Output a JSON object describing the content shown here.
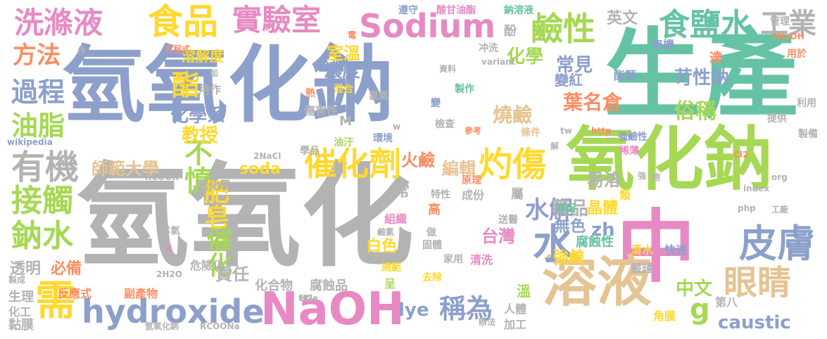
{
  "words": [
    {
      "text": "氫氧化鈉",
      "color": "#8da0cb"
    },
    {
      "text": "生產",
      "color": "#66c2a5"
    },
    {
      "text": "氫氧化",
      "color": "#b3b3b3"
    },
    {
      "text": "氧化鈉",
      "color": "#a6d854"
    },
    {
      "text": "中",
      "color": "#e78ac3"
    },
    {
      "text": "溶液",
      "color": "#e5c494"
    },
    {
      "text": "NaOH",
      "color": "#e78ac3"
    },
    {
      "text": "hydroxide",
      "color": "#8da0cb"
    },
    {
      "text": "食品",
      "color": "#ffd92f"
    },
    {
      "text": "洗滌液",
      "color": "#e78ac3"
    },
    {
      "text": "實驗室",
      "color": "#e78ac3"
    },
    {
      "text": "Sodium",
      "color": "#e78ac3"
    },
    {
      "text": "鹼性",
      "color": "#a6d854"
    },
    {
      "text": "食鹽水",
      "color": "#66c2a5"
    },
    {
      "text": "工業",
      "color": "#b3b3b3"
    },
    {
      "text": "方法",
      "color": "#fc8d62"
    },
    {
      "text": "過程",
      "color": "#8da0cb"
    },
    {
      "text": "油脂",
      "color": "#a6d854"
    },
    {
      "text": "有機",
      "color": "#b3b3b3"
    },
    {
      "text": "接觸",
      "color": "#a6d854"
    },
    {
      "text": "鈉水",
      "color": "#a6d854"
    },
    {
      "text": "需",
      "color": "#ffd92f"
    },
    {
      "text": "不慎",
      "color": "#a6d854"
    },
    {
      "text": "催化劑",
      "color": "#ffd92f"
    },
    {
      "text": "灼傷",
      "color": "#ffd92f"
    },
    {
      "text": "肥皂",
      "color": "#ffd92f"
    },
    {
      "text": "催化",
      "color": "#a6d854"
    },
    {
      "text": "水解",
      "color": "#8da0cb"
    },
    {
      "text": "水",
      "color": "#8da0cb"
    },
    {
      "text": "皮膚",
      "color": "#8da0cb"
    },
    {
      "text": "眼睛",
      "color": "#e5c494"
    },
    {
      "text": "稱為",
      "color": "#8da0cb"
    },
    {
      "text": "酯",
      "color": "#ffd92f"
    },
    {
      "text": "化學系",
      "color": "#8da0cb"
    },
    {
      "text": "教授",
      "color": "#ffd92f"
    },
    {
      "text": "師範大學",
      "color": "#e5c494"
    },
    {
      "text": "燒鹼",
      "color": "#e5c494"
    },
    {
      "text": "葉名倉",
      "color": "#fc8d62"
    },
    {
      "text": "俗稱",
      "color": "#a6d854"
    },
    {
      "text": "苛性鈉",
      "color": "#8da0cb"
    },
    {
      "text": "常見",
      "color": "#8da0cb"
    },
    {
      "text": "英文",
      "color": "#b3b3b3"
    },
    {
      "text": "化學",
      "color": "#a6d854"
    },
    {
      "text": "濃度",
      "color": "#8da0cb"
    },
    {
      "text": "室溫",
      "color": "#ffd92f"
    },
    {
      "text": "溶解度",
      "color": "#ffd92f"
    },
    {
      "text": "soda",
      "color": "#ffd92f"
    },
    {
      "text": "火鹼",
      "color": "#fc8d62"
    },
    {
      "text": "編輯",
      "color": "#e5c494"
    },
    {
      "text": "易溶",
      "color": "#b3b3b3"
    },
    {
      "text": "晶體",
      "color": "#ffd92f"
    },
    {
      "text": "藥品",
      "color": "#b3b3b3"
    },
    {
      "text": "無色",
      "color": "#8da0cb"
    },
    {
      "text": "zh",
      "color": "#8da0cb"
    },
    {
      "text": "台灣",
      "color": "#e78ac3"
    },
    {
      "text": "白色",
      "color": "#ffd92f"
    },
    {
      "text": "強鹼",
      "color": "#ffd92f"
    },
    {
      "text": "中文",
      "color": "#a6d854"
    },
    {
      "text": "g",
      "color": "#a6d854"
    },
    {
      "text": "caustic",
      "color": "#8da0cb"
    },
    {
      "text": "lye",
      "color": "#8da0cb"
    },
    {
      "text": "責任",
      "color": "#b3b3b3"
    },
    {
      "text": "透明",
      "color": "#b3b3b3"
    },
    {
      "text": "必備",
      "color": "#fc8d62"
    },
    {
      "text": "化合物",
      "color": "#b3b3b3"
    },
    {
      "text": "腐蝕品",
      "color": "#b3b3b3"
    },
    {
      "text": "常",
      "color": "#b3b3b3"
    },
    {
      "text": "危險化",
      "color": "#b3b3b3"
    },
    {
      "text": "起化學",
      "color": "#b3b3b3"
    },
    {
      "text": "反應式",
      "color": "#fc8d62"
    },
    {
      "text": "副產物",
      "color": "#fc8d62"
    },
    {
      "text": "生理",
      "color": "#b3b3b3"
    },
    {
      "text": "化工",
      "color": "#b3b3b3"
    },
    {
      "text": "黏膜",
      "color": "#b3b3b3"
    },
    {
      "text": "第八",
      "color": "#b3b3b3"
    },
    {
      "text": "角膜",
      "color": "#ffd92f"
    },
    {
      "text": "加工",
      "color": "#b3b3b3"
    },
    {
      "text": "人體",
      "color": "#b3b3b3"
    },
    {
      "text": "溫",
      "color": "#a6d854"
    },
    {
      "text": "腐蝕性",
      "color": "#66c2a5"
    },
    {
      "text": "清水",
      "color": "#ffd92f"
    },
    {
      "text": "快速",
      "color": "#8da0cb"
    },
    {
      "text": "嚴謹",
      "color": "#b3b3b3"
    },
    {
      "text": "清洗",
      "color": "#e78ac3"
    },
    {
      "text": "去除",
      "color": "#ffd92f"
    },
    {
      "text": "規範",
      "color": "#ffd92f"
    },
    {
      "text": "呈",
      "color": "#a6d854"
    },
    {
      "text": "高",
      "color": "#fc8d62"
    },
    {
      "text": "成份",
      "color": "#b3b3b3"
    },
    {
      "text": "特性",
      "color": "#b3b3b3"
    },
    {
      "text": "組織",
      "color": "#e78ac3"
    },
    {
      "text": "固體",
      "color": "#b3b3b3"
    },
    {
      "text": "做",
      "color": "#b3b3b3"
    },
    {
      "text": "家用",
      "color": "#b3b3b3"
    },
    {
      "text": "原理",
      "color": "#fc8d62"
    },
    {
      "text": "送醫",
      "color": "#b3b3b3"
    },
    {
      "text": "原因",
      "color": "#66c2a5"
    },
    {
      "text": "屬",
      "color": "#b3b3b3"
    },
    {
      "text": "類",
      "color": "#ffd92f"
    },
    {
      "text": "稀薄",
      "color": "#e78ac3"
    },
    {
      "text": "強鹼性",
      "color": "#8da0cb"
    },
    {
      "text": "三",
      "color": "#b3b3b3"
    },
    {
      "text": "製備",
      "color": "#b3b3b3"
    },
    {
      "text": "利用",
      "color": "#b3b3b3"
    },
    {
      "text": "提供",
      "color": "#b3b3b3"
    },
    {
      "text": "用於",
      "color": "#fc8d62"
    },
    {
      "text": "達",
      "color": "#fc8d62"
    },
    {
      "text": "無機",
      "color": "#8da0cb"
    },
    {
      "text": "變紅",
      "color": "#8da0cb"
    },
    {
      "text": "酯類",
      "color": "#8da0cb"
    },
    {
      "text": "管理",
      "color": "#b3b3b3"
    },
    {
      "text": "2NaOH",
      "color": "#fc8d62"
    },
    {
      "text": "酸甘油酯",
      "color": "#e78ac3"
    },
    {
      "text": "鈉溶液",
      "color": "#66c2a5"
    },
    {
      "text": "遵守",
      "color": "#8da0cb"
    },
    {
      "text": "酚",
      "color": "#b3b3b3"
    },
    {
      "text": "冲洗",
      "color": "#b3b3b3"
    },
    {
      "text": "製作",
      "color": "#66c2a5"
    },
    {
      "text": "檢查",
      "color": "#b3b3b3"
    },
    {
      "text": "條件",
      "color": "#e5c494"
    },
    {
      "text": "參考",
      "color": "#fc8d62"
    },
    {
      "text": "環境",
      "color": "#8da0cb"
    },
    {
      "text": "傷害性",
      "color": "#b3b3b3"
    },
    {
      "text": "氯氣",
      "color": "#b3b3b3"
    },
    {
      "text": "油汙",
      "color": "#a6d854"
    },
    {
      "text": "學品",
      "color": "#b3b3b3"
    },
    {
      "text": "混合",
      "color": "#ffd92f"
    },
    {
      "text": "熱",
      "color": "#fc8d62"
    },
    {
      "text": "資料",
      "color": "#b3b3b3"
    },
    {
      "text": "M",
      "color": "#b3b3b3"
    },
    {
      "text": "w",
      "color": "#b3b3b3"
    },
    {
      "text": "變",
      "color": "#8da0cb"
    },
    {
      "text": "用作",
      "color": "#b3b3b3"
    },
    {
      "text": "方程式",
      "color": "#fc8d62"
    },
    {
      "text": "作",
      "color": "#b3b3b3"
    },
    {
      "text": "加",
      "color": "#b3b3b3"
    },
    {
      "text": "variant",
      "color": "#b3b3b3"
    },
    {
      "text": "電",
      "color": "#fc8d62"
    },
    {
      "text": "title",
      "color": "#b3b3b3"
    },
    {
      "text": "http",
      "color": "#fc8d62"
    },
    {
      "text": "org",
      "color": "#b3b3b3"
    },
    {
      "text": "wikipedia",
      "color": "#8da0cb"
    },
    {
      "text": "RCOOR",
      "color": "#b3b3b3"
    },
    {
      "text": "2NaCl",
      "color": "#b3b3b3"
    },
    {
      "text": "H2",
      "color": "#b3b3b3"
    },
    {
      "text": "2H2O",
      "color": "#b3b3b3"
    },
    {
      "text": "R",
      "color": "#e78ac3"
    },
    {
      "text": "氫氧化鈉",
      "color": "#b3b3b3"
    },
    {
      "text": "RCOONa",
      "color": "#b3b3b3"
    },
    {
      "text": "Cl2",
      "color": "#fc8d62"
    },
    {
      "text": "index",
      "color": "#b3b3b3"
    },
    {
      "text": "php",
      "color": "#b3b3b3"
    },
    {
      "text": "工廠",
      "color": "#b3b3b3"
    },
    {
      "text": "鹼氯",
      "color": "#b3b3b3"
    },
    {
      "text": "率氣",
      "color": "#b3b3b3"
    },
    {
      "text": "製成",
      "color": "#b3b3b3"
    },
    {
      "text": "tw",
      "color": "#b3b3b3"
    },
    {
      "text": "解",
      "color": "#b3b3b3"
    },
    {
      "text": "強",
      "color": "#b3b3b3"
    },
    {
      "text": "飽",
      "color": "#b3b3b3"
    },
    {
      "text": "辦法",
      "color": "#b3b3b3"
    }
  ]
}
